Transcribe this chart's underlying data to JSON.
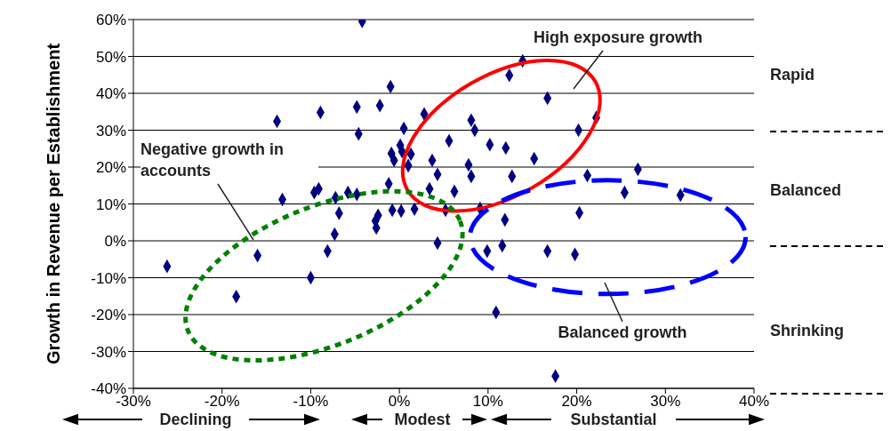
{
  "chart_data": {
    "type": "scatter",
    "ylabel": "Growth in Revenue per Establishment",
    "x": [
      -4.2,
      -1,
      -13.8,
      -8.9,
      -4.8,
      -2.2,
      -4.6,
      0.5,
      -1.2,
      -13.2,
      -9.6,
      -9.1,
      -7.2,
      -6.8,
      -5.8,
      -4.8,
      -2.4,
      -2.7,
      -2.6,
      -0.8,
      0.2,
      1.7,
      -7.3,
      -8.1,
      -10,
      -16,
      -18.4,
      -26.2,
      13.9,
      12.4,
      16.7,
      2.8,
      8.1,
      8.5,
      22.2,
      20.2,
      5.6,
      10.2,
      12,
      -0.9,
      0.1,
      0.3,
      -0.6,
      1.3,
      1,
      15.2,
      3.7,
      7.8,
      4.3,
      8.1,
      12.7,
      21.2,
      26.9,
      3.4,
      6.2,
      25.4,
      31.7,
      5.2,
      9.1,
      20.3,
      11.9,
      4.3,
      9.9,
      11.6,
      16.7,
      19.8,
      10.9,
      17.6
    ],
    "values": [
      59.5,
      41.8,
      32.4,
      34.8,
      36.3,
      36.7,
      29,
      30.5,
      15.5,
      11.2,
      13.1,
      14.1,
      11.7,
      7.5,
      13.1,
      12.6,
      6.9,
      5.4,
      3.5,
      8.3,
      8.1,
      8.6,
      1.8,
      -2.8,
      -10,
      -4,
      -15.1,
      -6.9,
      48.8,
      44.9,
      38.7,
      34.4,
      32.7,
      30,
      33.4,
      30,
      27.1,
      26.1,
      25.2,
      23.7,
      25.9,
      24.2,
      21.8,
      23.5,
      20.4,
      22.3,
      21.8,
      20.6,
      18,
      17.5,
      17.5,
      17.7,
      19.4,
      14.1,
      13.4,
      13.1,
      12.4,
      8.3,
      8.8,
      7.6,
      5.7,
      -0.6,
      -2.8,
      -1.3,
      -2.8,
      -3.7,
      -19.4,
      -36.7
    ],
    "color": "#000080",
    "marker": "diamond",
    "xlim": [
      -30,
      40
    ],
    "xticks": [
      {
        "value": -30,
        "label": "-30%"
      },
      {
        "value": -20,
        "label": "-20%"
      },
      {
        "value": -10,
        "label": "-10%"
      },
      {
        "value": 0,
        "label": "0%"
      },
      {
        "value": 10,
        "label": "10%"
      },
      {
        "value": 20,
        "label": "20%"
      },
      {
        "value": 30,
        "label": "30%"
      },
      {
        "value": 40,
        "label": "40%"
      }
    ],
    "ylim": [
      -40,
      60
    ],
    "yticks": [
      {
        "value": -40,
        "label": "-40%"
      },
      {
        "value": -30,
        "label": "-30%"
      },
      {
        "value": -20,
        "label": "-20%"
      },
      {
        "value": -10,
        "label": "-10%"
      },
      {
        "value": 0,
        "label": "0%"
      },
      {
        "value": 10,
        "label": "10%"
      },
      {
        "value": 20,
        "label": "20%"
      },
      {
        "value": 30,
        "label": "30%"
      },
      {
        "value": 40,
        "label": "40%"
      },
      {
        "value": 50,
        "label": "50%"
      },
      {
        "value": 60,
        "label": "60%"
      }
    ],
    "grid": "y",
    "legend": false,
    "annotations": [
      "High exposure growth",
      "Balanced growth",
      "Negative growth in accounts",
      "Rapid",
      "Balanced",
      "Shrinking",
      "Declining",
      "Modest",
      "Substantial"
    ]
  }
}
